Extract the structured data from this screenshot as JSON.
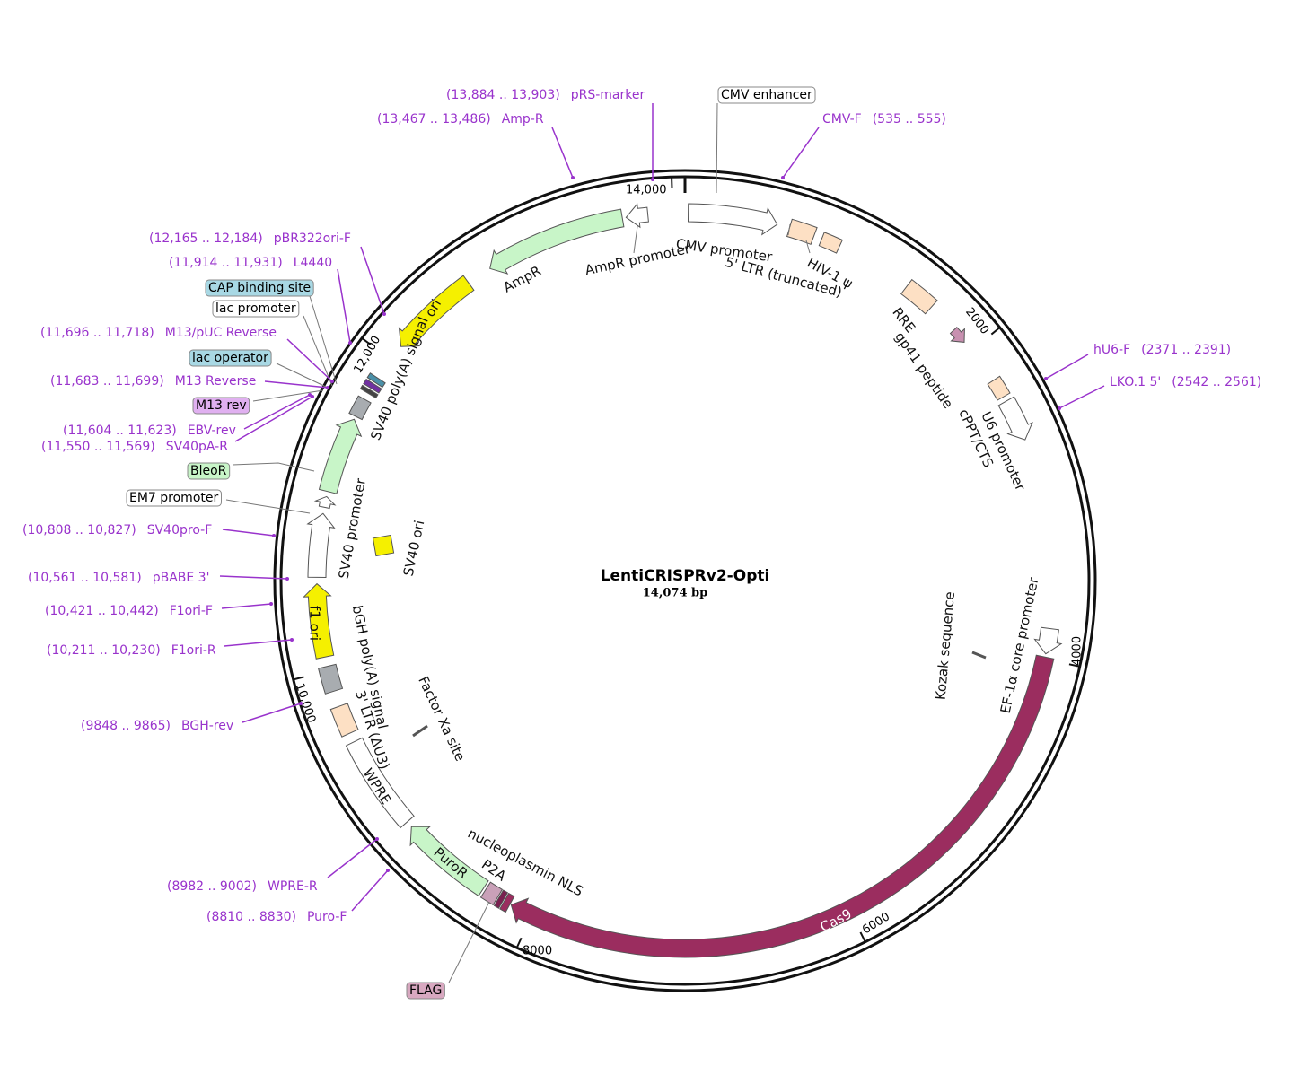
{
  "map": {
    "title": "LentiCRISPRv2-Opti",
    "size": "14,074 bp"
  },
  "ruler": [
    "14,000",
    "2000",
    "4000",
    "6000",
    "8000",
    "10,000",
    "12,000"
  ],
  "primers": [
    {
      "name": "pRS-marker",
      "range": "(13,884 .. 13,903)"
    },
    {
      "name": "Amp-R",
      "range": "(13,467 .. 13,486)"
    },
    {
      "name": "CMV-F",
      "range": "(535 .. 555)"
    },
    {
      "name": "hU6-F",
      "range": "(2371 .. 2391)"
    },
    {
      "name": "LKO.1 5'",
      "range": "(2542 .. 2561)"
    },
    {
      "name": "pBR322ori-F",
      "range": "(12,165 .. 12,184)"
    },
    {
      "name": "L4440",
      "range": "(11,914 .. 11,931)"
    },
    {
      "name": "M13/pUC Reverse",
      "range": "(11,696 .. 11,718)"
    },
    {
      "name": "M13 Reverse",
      "range": "(11,683 .. 11,699)"
    },
    {
      "name": "EBV-rev",
      "range": "(11,604 .. 11,623)"
    },
    {
      "name": "SV40pA-R",
      "range": "(11,550 .. 11,569)"
    },
    {
      "name": "SV40pro-F",
      "range": "(10,808 .. 10,827)"
    },
    {
      "name": "pBABE 3'",
      "range": "(10,561 .. 10,581)"
    },
    {
      "name": "F1ori-F",
      "range": "(10,421 .. 10,442)"
    },
    {
      "name": "F1ori-R",
      "range": "(10,211 .. 10,230)"
    },
    {
      "name": "BGH-rev",
      "range": "(9848 .. 9865)"
    },
    {
      "name": "WPRE-R",
      "range": "(8982 .. 9002)"
    },
    {
      "name": "Puro-F",
      "range": "(8810 .. 8830)"
    }
  ],
  "boxed_labels": [
    "CMV enhancer",
    "CAP binding site",
    "lac promoter",
    "lac operator",
    "M13 rev",
    "BleoR",
    "EM7 promoter",
    "FLAG"
  ],
  "feature_labels": [
    "CMV promoter",
    "5' LTR (truncated)",
    "HIV-1 ψ",
    "AmpR promoter",
    "AmpR",
    "ori",
    "SV40 poly(A) signal",
    "RRE",
    "gp41 peptide",
    "U6 promoter",
    "cPPT/CTS",
    "SV40 promoter",
    "SV40 ori",
    "f1 ori",
    "bGH poly(A) signal",
    "3' LTR (ΔU3)",
    "WPRE",
    "Factor Xa site",
    "PuroR",
    "nucleoplasmin NLS",
    "P2A",
    "Cas9",
    "Kozak sequence",
    "EF-1α core promoter"
  ]
}
